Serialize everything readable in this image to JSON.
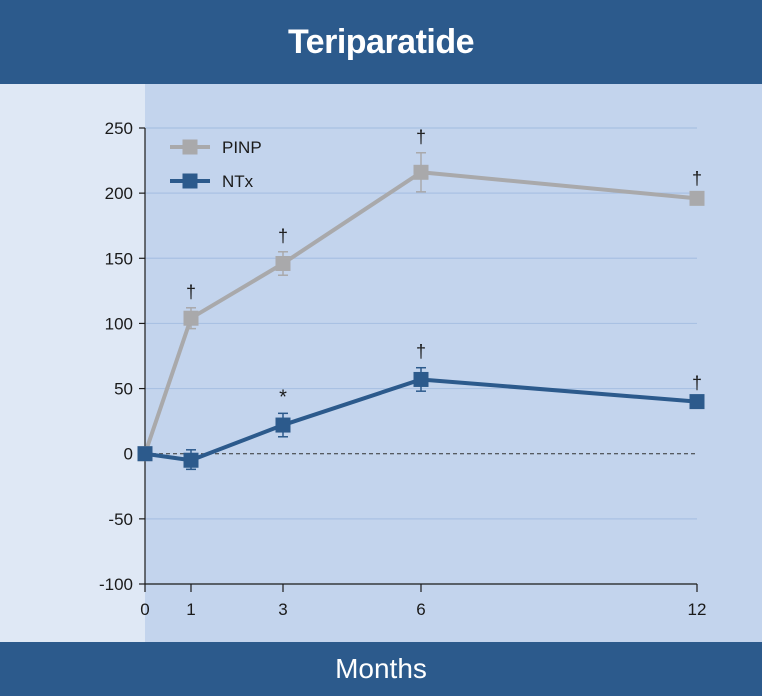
{
  "header": {
    "title": "Teriparatide"
  },
  "footer": {
    "xlabel": "Months"
  },
  "colors": {
    "banner": "#2c5a8c",
    "outer_bg": "#dfe8f5",
    "plot_bg": "#c3d4ed",
    "grid": "#a9c1e3",
    "axis": "#1a1a1a",
    "pinp": "#a9a9ab",
    "ntx": "#2c5a8c"
  },
  "chart_data": {
    "type": "line",
    "title": "Teriparatide",
    "xlabel": "Months",
    "ylabel": "",
    "x": [
      0,
      1,
      3,
      6,
      12
    ],
    "x_ticks": [
      "0",
      "1",
      "3",
      "6",
      "12"
    ],
    "y_ticks": [
      "250",
      "200",
      "150",
      "100",
      "50",
      "0",
      "-50",
      "-100"
    ],
    "ylim": [
      -100,
      250
    ],
    "reference_line": 0,
    "legend_position": "top-left",
    "series": [
      {
        "name": "PINP",
        "color": "#a9a9ab",
        "values": [
          0,
          104,
          146,
          216,
          196
        ],
        "error_low": [
          0,
          96,
          137,
          201,
          194
        ],
        "error_high": [
          0,
          112,
          155,
          231,
          199
        ],
        "annotations": [
          "",
          "†",
          "†",
          "†",
          "†"
        ]
      },
      {
        "name": "NTx",
        "color": "#2c5a8c",
        "values": [
          0,
          -5,
          22,
          57,
          40
        ],
        "error_low": [
          0,
          -12,
          13,
          48,
          38
        ],
        "error_high": [
          0,
          3,
          31,
          66,
          42
        ],
        "annotations": [
          "",
          "",
          "*",
          "†",
          "†"
        ]
      }
    ]
  }
}
